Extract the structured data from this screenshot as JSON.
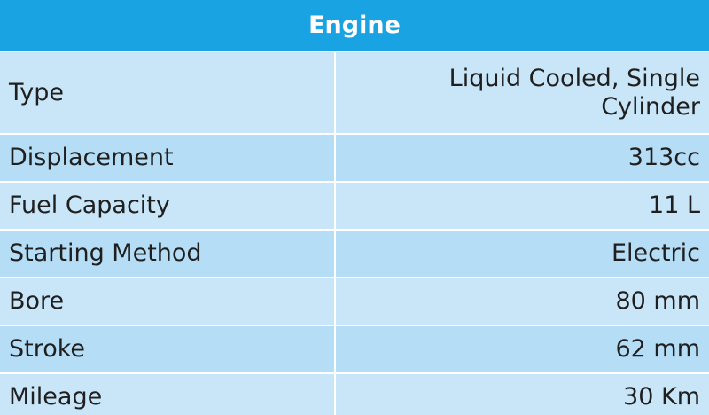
{
  "header": {
    "title": "Engine"
  },
  "rows": [
    {
      "label": "Type",
      "value_line1": "Liquid Cooled, Single",
      "value_line2": "Cylinder"
    },
    {
      "label": "Displacement",
      "value": "313cc"
    },
    {
      "label": "Fuel Capacity",
      "value": "11 L"
    },
    {
      "label": "Starting Method",
      "value": "Electric"
    },
    {
      "label": "Bore",
      "value": "80 mm"
    },
    {
      "label": "Stroke",
      "value": "62 mm"
    },
    {
      "label": "Mileage",
      "value": "30 Km"
    }
  ],
  "colors": {
    "header_bg": "#1aa3e3",
    "header_text": "#ffffff",
    "row_light": "#c9e6f8",
    "row_dark": "#b5ddf5"
  }
}
